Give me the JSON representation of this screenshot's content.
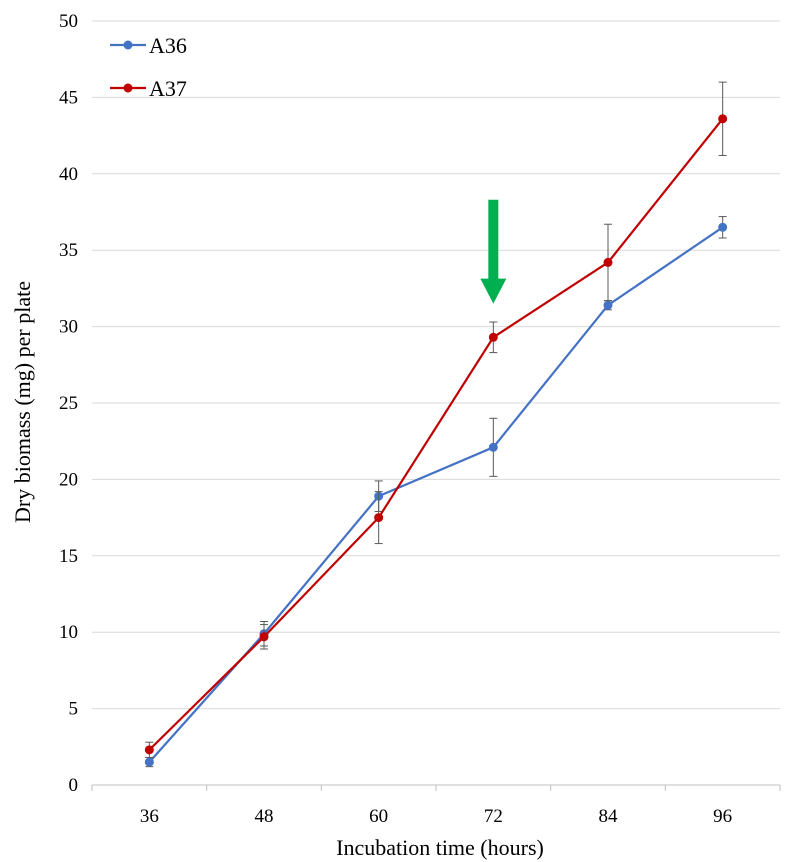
{
  "chart_data": {
    "type": "line",
    "title": "",
    "xlabel": "Incubation time (hours)",
    "ylabel": "Dry biomass (mg) per plate",
    "categories": [
      "36",
      "48",
      "60",
      "72",
      "84",
      "96"
    ],
    "ylim": [
      0,
      50
    ],
    "yticks": [
      "0",
      "5",
      "10",
      "15",
      "20",
      "25",
      "30",
      "35",
      "40",
      "45",
      "50"
    ],
    "grid": true,
    "legend_position": "top-left",
    "series": [
      {
        "name": "A36",
        "color": "#4472C4",
        "values": [
          1.5,
          9.9,
          18.9,
          22.1,
          31.4,
          36.5
        ],
        "errors": [
          0.3,
          0.8,
          1.0,
          1.9,
          0.3,
          0.7
        ]
      },
      {
        "name": "A37",
        "color": "#C00000",
        "values": [
          2.3,
          9.7,
          17.5,
          29.3,
          34.2,
          43.6
        ],
        "errors": [
          0.5,
          0.8,
          1.7,
          1.0,
          2.5,
          2.4
        ]
      }
    ],
    "annotations": [
      {
        "type": "arrow",
        "direction": "down",
        "color": "#00B050",
        "x": "72",
        "y_top": 38.3,
        "y_bottom": 31.5
      }
    ]
  }
}
